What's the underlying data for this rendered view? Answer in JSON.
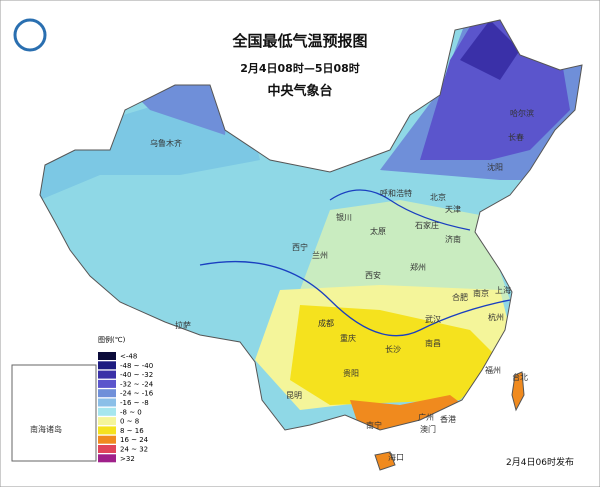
{
  "header": {
    "title": "全国最低气温预报图",
    "subtitle": "2月4日08时—5日08时",
    "issuer": "中央气象台"
  },
  "legend": {
    "title": "图例(℃)",
    "items": [
      {
        "label": "<-48",
        "color": "#0b0b3a"
      },
      {
        "label": "-48 ~ -40",
        "color": "#1d1b80"
      },
      {
        "label": "-40 ~ -32",
        "color": "#3a30a8"
      },
      {
        "label": "-32 ~ -24",
        "color": "#5b55cc"
      },
      {
        "label": "-24 ~ -16",
        "color": "#6f8fd9"
      },
      {
        "label": "-16 ~ -8",
        "color": "#8bbfe8"
      },
      {
        "label": "-8 ~ 0",
        "color": "#a6e6ee"
      },
      {
        "label": "0 ~ 8",
        "color": "#f4f59a"
      },
      {
        "label": "8 ~ 16",
        "color": "#f5e21e"
      },
      {
        "label": "16 ~ 24",
        "color": "#f08a1e"
      },
      {
        "label": "24 ~ 32",
        "color": "#e0455a"
      },
      {
        "label": ">32",
        "color": "#a0208a"
      }
    ]
  },
  "cities": [
    "乌鲁木齐",
    "哈尔滨",
    "长春",
    "沈阳",
    "呼和浩特",
    "北京",
    "天津",
    "石家庄",
    "太原",
    "银川",
    "西宁",
    "兰州",
    "济南",
    "郑州",
    "西安",
    "拉萨",
    "成都",
    "重庆",
    "武汉",
    "合肥",
    "南京",
    "上海",
    "杭州",
    "长沙",
    "南昌",
    "贵阳",
    "福州",
    "台北",
    "昆明",
    "南宁",
    "广州",
    "香港",
    "澳门",
    "海口"
  ],
  "inset_label": "南海诸岛",
  "issued": "2月4日06时发布"
}
